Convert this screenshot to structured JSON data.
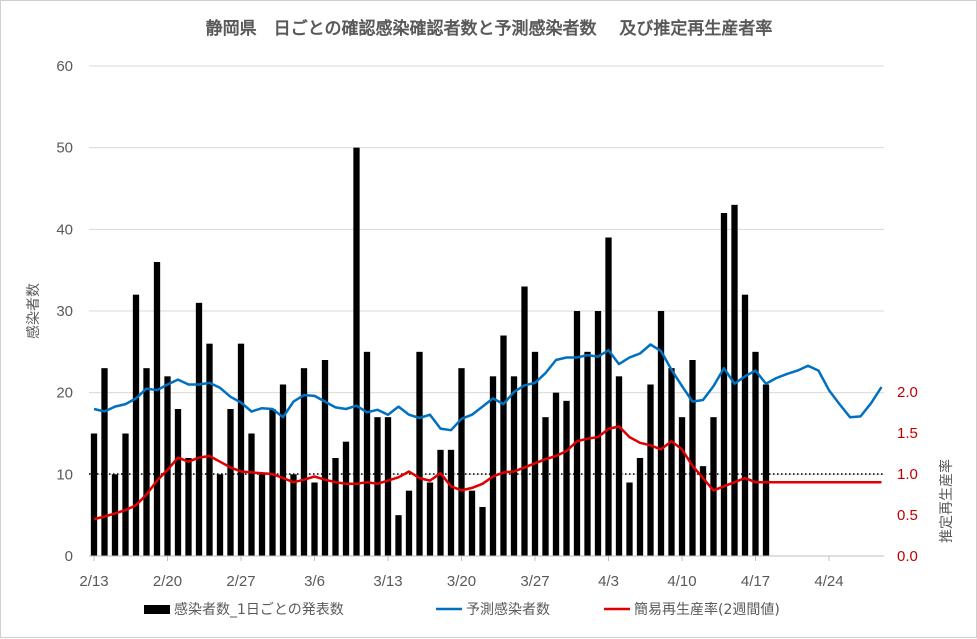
{
  "chart_data": {
    "type": "bar+line",
    "title": "静岡県　日ごとの確認感染確認者数と予測感染者数　 及び推定再生産者率",
    "ylabel": "感染者数",
    "y2label": "推定再生産率",
    "ylim": [
      0,
      60
    ],
    "y2lim": [
      0,
      2.0
    ],
    "yticks": [
      "0",
      "10",
      "20",
      "30",
      "40",
      "50",
      "60"
    ],
    "y2ticks": [
      "0.0",
      "0.5",
      "1.0",
      "1.5",
      "2.0"
    ],
    "xtick_labels": [
      "2/13",
      "2/20",
      "2/27",
      "3/6",
      "3/13",
      "3/20",
      "3/27",
      "4/3",
      "4/10",
      "4/17",
      "4/24"
    ],
    "x_start": "2/13",
    "reference_line": {
      "value": 1.0,
      "style": "dotted",
      "axis": "y2"
    },
    "colors": {
      "bars": "#000000",
      "predicted": "#0070c0",
      "rt": "#e00000",
      "right_axis": "#c00000"
    },
    "legend": [
      {
        "label": "感染者数_1日ごとの発表数",
        "icon": "bar"
      },
      {
        "label": "予測感染者数",
        "icon": "line-blue"
      },
      {
        "label": "簡易再生産率(2週間値)",
        "icon": "line-red"
      }
    ],
    "series": [
      {
        "name": "感染者数_1日ごとの発表数",
        "kind": "bar",
        "values": [
          15,
          23,
          10,
          15,
          32,
          23,
          36,
          22,
          18,
          12,
          31,
          26,
          10,
          18,
          26,
          15,
          10,
          18,
          21,
          10,
          23,
          9,
          24,
          12,
          14,
          50,
          25,
          17,
          17,
          5,
          8,
          25,
          9,
          13,
          13,
          23,
          8,
          6,
          22,
          27,
          22,
          33,
          25,
          17,
          20,
          19,
          30,
          25,
          30,
          39,
          22,
          9,
          12,
          21,
          30,
          23,
          17,
          24,
          11,
          17,
          42,
          43,
          32,
          25,
          21
        ]
      },
      {
        "name": "予測感染者数",
        "kind": "line",
        "values": [
          18.0,
          17.7,
          18.3,
          18.6,
          19.3,
          20.5,
          20.3,
          21.0,
          21.6,
          21.0,
          21.0,
          21.2,
          20.6,
          19.5,
          18.8,
          17.7,
          18.1,
          18.0,
          17.0,
          18.9,
          19.7,
          19.6,
          18.9,
          18.2,
          18.0,
          18.4,
          17.6,
          17.9,
          17.3,
          18.3,
          17.3,
          16.9,
          17.3,
          15.6,
          15.4,
          16.8,
          17.3,
          18.3,
          19.3,
          18.6,
          20.1,
          20.9,
          21.2,
          22.4,
          24.0,
          24.3,
          24.3,
          24.6,
          24.4,
          25.2,
          23.5,
          24.3,
          24.8,
          25.9,
          25.1,
          22.8,
          20.8,
          18.9,
          19.1,
          20.8,
          23.0,
          21.1,
          22.0,
          22.7,
          21.1,
          21.8,
          22.3,
          22.7,
          23.3,
          22.7,
          20.3,
          18.6,
          17.0,
          17.1,
          18.7,
          20.7
        ]
      },
      {
        "name": "簡易再生産率(2週間値)",
        "kind": "line",
        "axis": "y2",
        "values": [
          0.45,
          0.48,
          0.52,
          0.56,
          0.62,
          0.75,
          0.92,
          1.05,
          1.2,
          1.15,
          1.2,
          1.22,
          1.15,
          1.08,
          1.03,
          1.02,
          1.01,
          1.0,
          0.95,
          0.9,
          0.93,
          0.97,
          0.93,
          0.9,
          0.88,
          0.88,
          0.9,
          0.88,
          0.92,
          0.96,
          1.03,
          0.95,
          0.92,
          1.01,
          0.85,
          0.8,
          0.83,
          0.88,
          0.97,
          1.02,
          1.03,
          1.08,
          1.13,
          1.18,
          1.22,
          1.28,
          1.4,
          1.43,
          1.45,
          1.55,
          1.58,
          1.45,
          1.38,
          1.35,
          1.3,
          1.4,
          1.3,
          1.1,
          0.95,
          0.8,
          0.85,
          0.9,
          0.95,
          0.9,
          0.9,
          0.9,
          0.9,
          0.9,
          0.9,
          0.9,
          0.9,
          0.9,
          0.9,
          0.9,
          0.9,
          0.9
        ]
      }
    ]
  }
}
